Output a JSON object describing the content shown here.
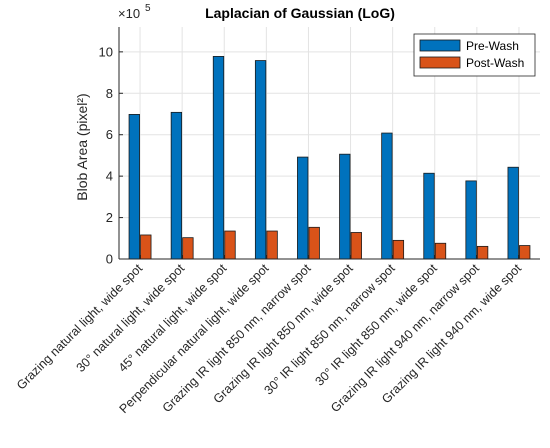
{
  "chart_data": {
    "type": "bar",
    "title": "Laplacian of Gaussian (LoG)",
    "ylabel": "Blob Area (pixel²)",
    "xlabel": "",
    "exponent_label": "×10",
    "exponent_power": "5",
    "scale": 100000,
    "ylim": [
      0,
      11.2
    ],
    "yticks": [
      0,
      2,
      4,
      6,
      8,
      10
    ],
    "grid": true,
    "legend_position": "top-right",
    "categories": [
      "Grazing natural light, wide spot",
      "30° natural light, wide spot",
      "45° natural light, wide spot",
      "Perpendicular natural light, wide spot",
      "Grazing IR light 850 nm, narrow spot",
      "Grazing IR light 850 nm, wide spot",
      "30° IR light 850 nm, narrow spot",
      "30° IR light 850 nm, wide spot",
      "Grazing IR light 940 nm, narrow spot",
      "Grazing IR light 940 nm, wide spot"
    ],
    "series": [
      {
        "name": "Pre-Wash",
        "color": "#0072BD",
        "values": [
          6.98,
          7.08,
          9.78,
          9.58,
          4.92,
          5.06,
          6.08,
          4.14,
          3.77,
          4.43
        ]
      },
      {
        "name": "Post-Wash",
        "color": "#D95319",
        "values": [
          1.16,
          1.03,
          1.35,
          1.35,
          1.53,
          1.28,
          0.9,
          0.76,
          0.61,
          0.65
        ]
      }
    ]
  }
}
